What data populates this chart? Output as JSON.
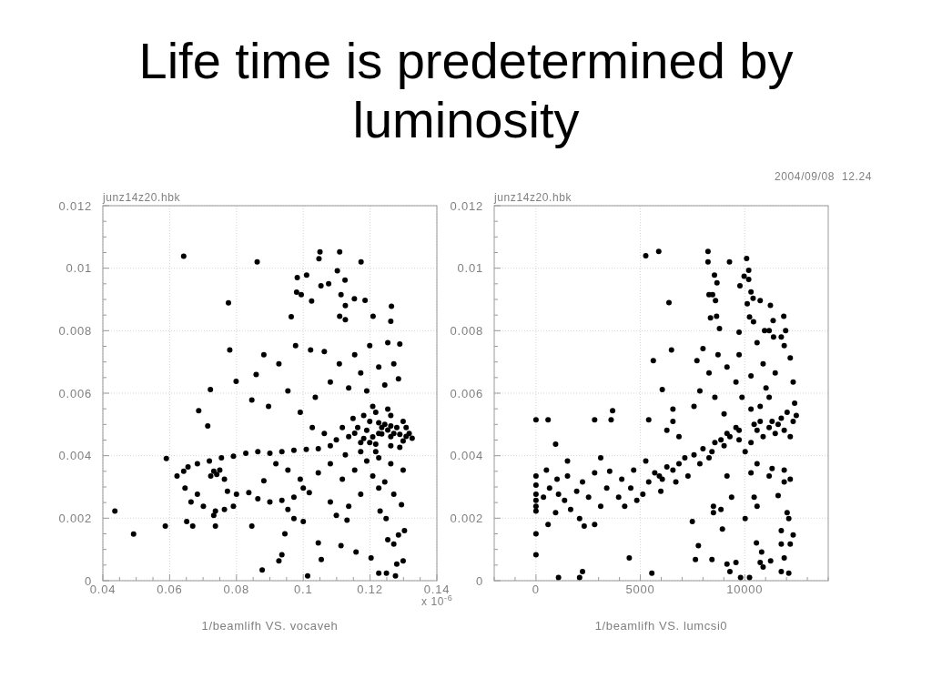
{
  "chart_data": [
    {
      "type": "scatter",
      "title": "Life time is predetermined by luminosity",
      "xlabel": "1/beamlifh VS. vocaveh",
      "annotations": [
        "junz14z20.hbk",
        "x 10$^{-6}$"
      ],
      "color": "#000000",
      "marker": "circle",
      "grid": true,
      "xlim": [
        0.04,
        0.14
      ],
      "xticks": [
        0.04,
        {
          "value": 0.045,
          "label": null
        },
        {
          "value": 0.05,
          "label": null
        },
        {
          "value": 0.055,
          "label": null
        },
        0.06,
        {
          "value": 0.065,
          "label": null
        },
        {
          "value": 0.07,
          "label": null
        },
        {
          "value": 0.075,
          "label": null
        },
        0.08,
        {
          "value": 0.085,
          "label": null
        },
        {
          "value": 0.09,
          "label": null
        },
        {
          "value": 0.095,
          "label": null
        },
        0.1,
        {
          "value": 0.105,
          "label": null
        },
        {
          "value": 0.11,
          "label": null
        },
        {
          "value": 0.115,
          "label": null
        },
        0.12,
        {
          "value": 0.125,
          "label": null
        },
        {
          "value": 0.13,
          "label": null
        },
        {
          "value": 0.135,
          "label": null
        },
        0.14
      ],
      "ylim": [
        0,
        0.012
      ],
      "yticks": [
        0,
        {
          "value": 0.0005,
          "label": null
        },
        {
          "value": 0.001,
          "label": null
        },
        {
          "value": 0.0015,
          "label": null
        },
        0.002,
        {
          "value": 0.0025,
          "label": null
        },
        {
          "value": 0.003,
          "label": null
        },
        {
          "value": 0.0035,
          "label": null
        },
        0.004,
        {
          "value": 0.0045,
          "label": null
        },
        {
          "value": 0.005,
          "label": null
        },
        {
          "value": 0.0055,
          "label": null
        },
        0.006,
        {
          "value": 0.0065,
          "label": null
        },
        {
          "value": 0.007,
          "label": null
        },
        {
          "value": 0.0075,
          "label": null
        },
        0.008,
        {
          "value": 0.0085,
          "label": null
        },
        {
          "value": 0.009,
          "label": null
        },
        {
          "value": 0.0095,
          "label": null
        },
        0.01,
        {
          "value": 0.0105,
          "label": null
        },
        {
          "value": 0.011,
          "label": null
        },
        {
          "value": 0.0115,
          "label": null
        },
        0.012
      ],
      "x": [
        0.0642,
        0.0862,
        0.0776,
        0.105,
        0.1109,
        0.1173,
        0.1047,
        0.1102,
        0.0982,
        0.101,
        0.1125,
        0.1053,
        0.1076,
        0.098,
        0.0994,
        0.1113,
        0.1025,
        0.1153,
        0.1185,
        0.1126,
        0.1264,
        0.1209,
        0.0964,
        0.1109,
        0.1262,
        0.1126,
        0.0436,
        0.0492,
        0.0587,
        0.059,
        0.0622,
        0.078,
        0.0722,
        0.0687,
        0.0714,
        0.0882,
        0.0977,
        0.1022,
        0.1063,
        0.0859,
        0.0927,
        0.0799,
        0.0846,
        0.0896,
        0.0954,
        0.0991,
        0.1036,
        0.1081,
        0.1108,
        0.1154,
        0.1199,
        0.1253,
        0.1289,
        0.1172,
        0.1226,
        0.1271,
        0.1136,
        0.119,
        0.1244,
        0.1285,
        0.1217,
        0.1262,
        0.1299,
        0.1199,
        0.1244,
        0.128,
        0.1317,
        0.1326,
        0.1299,
        0.1262,
        0.1226,
        0.119,
        0.1163,
        0.1136,
        0.1172,
        0.1217,
        0.1262,
        0.1289,
        0.1235,
        0.1271,
        0.1208,
        0.1181,
        0.1253,
        0.1308,
        0.1099,
        0.1081,
        0.1117,
        0.1149,
        0.1063,
        0.1027,
        0.1045,
        0.1009,
        0.0972,
        0.0936,
        0.09,
        0.0864,
        0.0828,
        0.0791,
        0.0755,
        0.0719,
        0.0683,
        0.0655,
        0.0642,
        0.0732,
        0.0741,
        0.075,
        0.0723,
        0.0764,
        0.0646,
        0.0683,
        0.0664,
        0.0701,
        0.0737,
        0.0764,
        0.0737,
        0.0651,
        0.0669,
        0.0791,
        0.08,
        0.0773,
        0.0837,
        0.0864,
        0.09,
        0.0936,
        0.0972,
        0.1,
        0.1018,
        0.0882,
        0.0918,
        0.0954,
        0.0991,
        0.1045,
        0.1081,
        0.1081,
        0.1117,
        0.1154,
        0.119,
        0.1226,
        0.1262,
        0.1208,
        0.1244,
        0.1271,
        0.1226,
        0.1172,
        0.1136,
        0.1299,
        0.1294,
        0.123,
        0.1248,
        0.1099,
        0.1131,
        0.1,
        0.0927,
        0.0877,
        0.0936,
        0.0945,
        0.1045,
        0.1054,
        0.1113,
        0.1158,
        0.1203,
        0.1226,
        0.1253,
        0.128,
        0.1276,
        0.1299,
        0.1303,
        0.1285,
        0.1271,
        0.1249,
        0.1013,
        0.0846,
        0.0954,
        0.0972,
        0.0732,
        0.1172,
        0.1217,
        0.1126,
        0.1235,
        0.1253,
        0.1208,
        0.1181,
        0.1226,
        0.1262,
        0.1289,
        0.1308,
        0.1154,
        0.1199
      ],
      "values": [
        0.01038,
        0.0102,
        0.00889,
        0.01052,
        0.01052,
        0.0102,
        0.0103,
        0.00992,
        0.0097,
        0.00978,
        0.00962,
        0.00944,
        0.0095,
        0.00923,
        0.00915,
        0.00915,
        0.00895,
        0.00902,
        0.00897,
        0.0088,
        0.00878,
        0.00846,
        0.00845,
        0.00846,
        0.0083,
        0.00835,
        0.00223,
        0.00149,
        0.00175,
        0.00391,
        0.00335,
        0.00738,
        0.00612,
        0.00544,
        0.00495,
        0.00723,
        0.00752,
        0.00738,
        0.00733,
        0.0066,
        0.00694,
        0.00638,
        0.00578,
        0.00558,
        0.00607,
        0.00539,
        0.00587,
        0.00636,
        0.00694,
        0.00723,
        0.00752,
        0.00762,
        0.00757,
        0.00665,
        0.00684,
        0.00694,
        0.00617,
        0.00607,
        0.00626,
        0.00646,
        0.00539,
        0.00529,
        0.0051,
        0.0051,
        0.005,
        0.0049,
        0.00471,
        0.00456,
        0.00447,
        0.00461,
        0.00471,
        0.00481,
        0.0049,
        0.00461,
        0.00442,
        0.00437,
        0.00432,
        0.00427,
        0.0049,
        0.00471,
        0.00558,
        0.00529,
        0.00549,
        0.0049,
        0.00451,
        0.00432,
        0.0049,
        0.00519,
        0.00471,
        0.0049,
        0.00422,
        0.0042,
        0.00417,
        0.00413,
        0.00408,
        0.00413,
        0.00408,
        0.00398,
        0.00393,
        0.00383,
        0.00374,
        0.00364,
        0.0035,
        0.0035,
        0.0034,
        0.00354,
        0.00335,
        0.00325,
        0.00296,
        0.00277,
        0.00252,
        0.00238,
        0.00223,
        0.00228,
        0.00175,
        0.00189,
        0.00175,
        0.00238,
        0.00277,
        0.00286,
        0.00282,
        0.00262,
        0.00252,
        0.00257,
        0.00267,
        0.00296,
        0.00282,
        0.0032,
        0.00374,
        0.00354,
        0.00325,
        0.00345,
        0.00374,
        0.00252,
        0.00325,
        0.00354,
        0.00383,
        0.00393,
        0.00374,
        0.00335,
        0.00316,
        0.00277,
        0.00296,
        0.00277,
        0.00238,
        0.00354,
        0.00243,
        0.00223,
        0.00199,
        0.00209,
        0.00194,
        0.00189,
        0.00063,
        0.00034,
        0.00083,
        0.0015,
        0.00121,
        0.00068,
        0.00112,
        0.00092,
        0.00073,
        0.00024,
        0.00131,
        0.00053,
        0.00015,
        0.00063,
        0.0016,
        0.00146,
        0.00117,
        0.00024,
        0.00015,
        0.00175,
        0.00228,
        0.00199,
        0.00209,
        0.00413,
        0.00413,
        0.00403,
        0.0047,
        0.00482,
        0.0046,
        0.00455,
        0.00505,
        0.00495,
        0.00468,
        0.00462,
        0.00472,
        0.00442
      ]
    },
    {
      "type": "scatter",
      "xlabel": "1/beamlifh VS. lumcsi0",
      "annotations": [
        "junz14z20.hbk",
        "2004/09/08  12.24"
      ],
      "color": "#000000",
      "marker": "circle",
      "grid": true,
      "xlim": [
        -2000,
        14000
      ],
      "xticks": [
        {
          "value": -2000,
          "label": null
        },
        {
          "value": -1000,
          "label": null
        },
        0,
        {
          "value": 1000,
          "label": null
        },
        {
          "value": 2000,
          "label": null
        },
        {
          "value": 3000,
          "label": null
        },
        {
          "value": 4000,
          "label": null
        },
        5000,
        {
          "value": 6000,
          "label": null
        },
        {
          "value": 7000,
          "label": null
        },
        {
          "value": 8000,
          "label": null
        },
        {
          "value": 9000,
          "label": null
        },
        10000,
        {
          "value": 11000,
          "label": null
        },
        {
          "value": 12000,
          "label": null
        },
        {
          "value": 13000,
          "label": null
        },
        {
          "value": 14000,
          "label": null
        }
      ],
      "ylim": [
        0,
        0.012
      ],
      "yticks": [
        0,
        {
          "value": 0.0005,
          "label": null
        },
        {
          "value": 0.001,
          "label": null
        },
        {
          "value": 0.0015,
          "label": null
        },
        0.002,
        {
          "value": 0.0025,
          "label": null
        },
        {
          "value": 0.003,
          "label": null
        },
        {
          "value": 0.0035,
          "label": null
        },
        0.004,
        {
          "value": 0.0045,
          "label": null
        },
        {
          "value": 0.005,
          "label": null
        },
        {
          "value": 0.0055,
          "label": null
        },
        0.006,
        {
          "value": 0.0065,
          "label": null
        },
        {
          "value": 0.007,
          "label": null
        },
        {
          "value": 0.0075,
          "label": null
        },
        0.008,
        {
          "value": 0.0085,
          "label": null
        },
        {
          "value": 0.009,
          "label": null
        },
        {
          "value": 0.0095,
          "label": null
        },
        0.01,
        {
          "value": 0.0105,
          "label": null
        },
        {
          "value": 0.011,
          "label": null
        },
        {
          "value": 0.0115,
          "label": null
        },
        0.012
      ],
      "x": [
        0,
        0,
        0,
        0,
        0,
        0,
        0,
        0,
        0,
        360,
        650,
        500,
        1010,
        1080,
        940,
        1370,
        1510,
        1660,
        1510,
        1950,
        2230,
        2090,
        2520,
        2810,
        3100,
        2810,
        2310,
        580,
        3530,
        3390,
        3960,
        4110,
        4250,
        4540,
        4830,
        4680,
        5120,
        5400,
        5260,
        5690,
        5980,
        5910,
        6050,
        6270,
        6560,
        6850,
        7130,
        6700,
        7280,
        7570,
        7850,
        8000,
        8290,
        8570,
        9010,
        9290,
        9730,
        10020,
        10300,
        10590,
        10880,
        10450,
        10740,
        11170,
        11460,
        11600,
        11890,
        12180,
        12320,
        12470,
        12030,
        11750,
        9730,
        9150,
        9580,
        8860,
        8430,
        11310,
        7570,
        7850,
        8290,
        7710,
        8000,
        8720,
        9150,
        9580,
        8570,
        9010,
        9870,
        10300,
        10590,
        10880,
        11020,
        10740,
        11170,
        11460,
        11890,
        12180,
        12320,
        12390,
        10300,
        9730,
        6560,
        6270,
        6560,
        6850,
        5620,
        6490,
        6050,
        5400,
        3670,
        3600,
        2810,
        580,
        940,
        3100,
        4470,
        2230,
        5550,
        1080,
        2090,
        7490,
        7780,
        7640,
        8430,
        8500,
        8500,
        8930,
        9150,
        9370,
        8860,
        9150,
        9290,
        9580,
        9800,
        10230,
        10020,
        10300,
        10450,
        10590,
        10560,
        10810,
        10740,
        10880,
        11240,
        11310,
        11600,
        11750,
        11750,
        11890,
        11750,
        12030,
        12110,
        12180,
        12320,
        11890,
        12180,
        12110,
        11890,
        11170,
        10590,
        5260,
        5880,
        8240,
        8240,
        9270,
        10090,
        6370,
        8550,
        8670,
        9770,
        10190,
        9970,
        10190,
        8290,
        8460,
        8600,
        10300,
        10400,
        10740,
        10120,
        11230,
        11870,
        8360,
        8650,
        10230,
        10420,
        11360,
        8790,
        9730,
        10950,
        11170,
        11960,
        11380,
        11750
      ],
      "values": [
        0.00335,
        0.00306,
        0.00277,
        0.00257,
        0.00238,
        0.00223,
        0.00515,
        0.0015,
        0.00083,
        0.00267,
        0.00296,
        0.00354,
        0.00325,
        0.00277,
        0.00218,
        0.00257,
        0.00335,
        0.00228,
        0.00383,
        0.00286,
        0.00316,
        0.00199,
        0.00267,
        0.00345,
        0.00238,
        0.0018,
        0.00175,
        0.0018,
        0.0035,
        0.00296,
        0.00267,
        0.00325,
        0.00238,
        0.00296,
        0.00257,
        0.00354,
        0.00277,
        0.00316,
        0.00383,
        0.00345,
        0.00286,
        0.00335,
        0.00325,
        0.00364,
        0.00354,
        0.00374,
        0.00393,
        0.00316,
        0.00335,
        0.00403,
        0.00374,
        0.00422,
        0.00393,
        0.00442,
        0.00432,
        0.00461,
        0.00451,
        0.00413,
        0.00442,
        0.00481,
        0.00461,
        0.005,
        0.0051,
        0.0049,
        0.00471,
        0.005,
        0.00481,
        0.00461,
        0.0051,
        0.00529,
        0.00539,
        0.0052,
        0.00481,
        0.00471,
        0.0049,
        0.00451,
        0.00413,
        0.0051,
        0.00558,
        0.00607,
        0.00665,
        0.00704,
        0.00743,
        0.00723,
        0.00684,
        0.00636,
        0.00587,
        0.00534,
        0.00587,
        0.00655,
        0.00762,
        0.00694,
        0.00617,
        0.00558,
        0.00587,
        0.00665,
        0.00752,
        0.00713,
        0.00636,
        0.00568,
        0.00549,
        0.00723,
        0.00549,
        0.00481,
        0.0051,
        0.00461,
        0.00704,
        0.00738,
        0.00612,
        0.00515,
        0.00544,
        0.00515,
        0.00515,
        0.00515,
        0.00437,
        0.00393,
        0.00073,
        0.00029,
        0.00024,
        0.0001,
        0.0001,
        0.00189,
        0.00112,
        0.00068,
        0.00068,
        0.00238,
        0.00218,
        0.00165,
        0.00335,
        0.00267,
        0.00228,
        0.00053,
        0.00029,
        0.00058,
        0.0001,
        0.0001,
        0.00199,
        0.00345,
        0.00267,
        0.00238,
        0.00121,
        0.00092,
        0.00058,
        0.00044,
        0.00063,
        0.00359,
        0.00272,
        0.0016,
        0.00117,
        0.00073,
        0.00029,
        0.00218,
        0.00199,
        0.00117,
        0.00146,
        0.00316,
        0.00325,
        0.00024,
        0.00354,
        0.00335,
        0.00374,
        0.0104,
        0.01054,
        0.01054,
        0.0102,
        0.0102,
        0.01031,
        0.0089,
        0.00978,
        0.00953,
        0.00944,
        0.00993,
        0.00974,
        0.00964,
        0.00915,
        0.00915,
        0.00896,
        0.00924,
        0.00904,
        0.00896,
        0.00886,
        0.00881,
        0.00846,
        0.00841,
        0.00846,
        0.00844,
        0.00829,
        0.00832,
        0.00807,
        0.00795,
        0.008,
        0.008,
        0.008,
        0.0078,
        0.0078
      ]
    }
  ]
}
